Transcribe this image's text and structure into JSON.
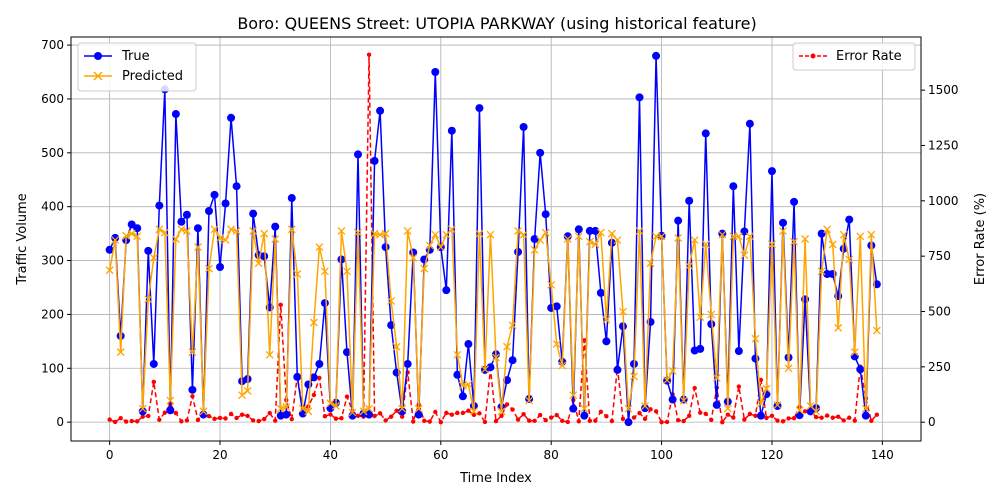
{
  "chart_data": {
    "type": "line",
    "title": "Boro: QUEENS Street: UTOPIA PARKWAY (using historical feature)",
    "xlabel": "Time Index",
    "ylabel": "Traffic Volume",
    "ylabel_right": "Error Rate (%)",
    "xlim": [
      -7,
      147
    ],
    "ylim": [
      -35,
      715
    ],
    "ylim_right": [
      -85,
      1740
    ],
    "xticks": [
      0,
      20,
      40,
      60,
      80,
      100,
      120,
      140
    ],
    "yticks": [
      0,
      100,
      200,
      300,
      400,
      500,
      600,
      700
    ],
    "yticks_right": [
      0,
      250,
      500,
      750,
      1000,
      1250,
      1500
    ],
    "grid": true,
    "legend_left_position": "upper-left",
    "legend_right_position": "upper-right",
    "series": [
      {
        "name": "True",
        "axis": "left",
        "color": "#0000ff",
        "marker": "circle",
        "values": [
          320,
          342,
          160,
          338,
          367,
          360,
          20,
          318,
          108,
          402,
          618,
          22,
          572,
          372,
          385,
          60,
          360,
          14,
          392,
          422,
          288,
          406,
          565,
          438,
          76,
          80,
          387,
          310,
          308,
          213,
          363,
          12,
          14,
          416,
          84,
          16,
          70,
          83,
          108,
          221,
          26,
          36,
          302,
          130,
          12,
          497,
          16,
          14,
          485,
          578,
          325,
          180,
          92,
          20,
          108,
          315,
          14,
          302,
          320,
          650,
          325,
          245,
          541,
          88,
          48,
          145,
          30,
          583,
          97,
          102,
          126,
          28,
          78,
          115,
          316,
          548,
          43,
          340,
          500,
          386,
          212,
          215,
          112,
          345,
          25,
          358,
          12,
          355,
          355,
          240,
          150,
          333,
          97,
          178,
          0,
          108,
          603,
          26,
          186,
          680,
          346,
          77,
          42,
          374,
          42,
          411,
          133,
          136,
          536,
          182,
          32,
          350,
          38,
          438,
          132,
          354,
          554,
          118,
          12,
          52,
          466,
          30,
          370,
          120,
          409,
          13,
          228,
          20,
          26,
          350,
          275,
          275,
          234,
          322,
          376,
          122,
          98,
          12,
          328,
          256
        ]
      },
      {
        "name": "Predicted",
        "axis": "left",
        "color": "#ffa500",
        "marker": "x",
        "values": [
          282,
          338,
          130,
          346,
          350,
          345,
          25,
          228,
          305,
          358,
          352,
          40,
          340,
          358,
          355,
          130,
          325,
          20,
          285,
          358,
          342,
          338,
          358,
          355,
          50,
          58,
          355,
          295,
          350,
          125,
          340,
          25,
          28,
          358,
          275,
          25,
          20,
          185,
          325,
          280,
          35,
          30,
          355,
          280,
          18,
          352,
          20,
          25,
          350,
          348,
          350,
          225,
          140,
          25,
          355,
          305,
          25,
          285,
          328,
          348,
          325,
          348,
          358,
          125,
          68,
          70,
          20,
          350,
          98,
          348,
          120,
          20,
          140,
          180,
          355,
          348,
          40,
          320,
          338,
          352,
          255,
          145,
          105,
          340,
          50,
          345,
          25,
          335,
          330,
          352,
          190,
          350,
          338,
          205,
          25,
          85,
          355,
          30,
          295,
          345,
          345,
          78,
          95,
          342,
          40,
          290,
          338,
          195,
          330,
          200,
          82,
          348,
          25,
          345,
          345,
          310,
          345,
          155,
          35,
          62,
          330,
          32,
          355,
          100,
          335,
          22,
          340,
          30,
          20,
          280,
          358,
          330,
          175,
          348,
          302,
          130,
          345,
          25,
          348,
          170
        ]
      },
      {
        "name": "Error Rate",
        "axis": "right",
        "color": "#ff0000",
        "marker": "dot",
        "linestyle": "dashed",
        "values": [
          12,
          1,
          18,
          3,
          5,
          4,
          25,
          28,
          182,
          11,
          43,
          82,
          41,
          4,
          8,
          117,
          10,
          43,
          27,
          15,
          19,
          17,
          37,
          19,
          34,
          28,
          8,
          5,
          14,
          41,
          7,
          530,
          100,
          14,
          208,
          56,
          71,
          123,
          200,
          27,
          35,
          16,
          18,
          115,
          50,
          29,
          25,
          1660,
          28,
          40,
          8,
          25,
          52,
          25,
          225,
          3,
          79,
          6,
          3,
          46,
          0,
          42,
          34,
          42,
          42,
          52,
          33,
          40,
          1,
          241,
          5,
          29,
          80,
          57,
          12,
          36,
          7,
          6,
          32,
          9,
          21,
          32,
          6,
          1,
          100,
          4,
          370,
          6,
          7,
          47,
          27,
          5,
          248,
          15,
          0,
          21,
          41,
          15,
          58,
          49,
          0,
          1,
          126,
          9,
          5,
          29,
          154,
          43,
          38,
          10,
          156,
          0,
          34,
          21,
          161,
          12,
          37,
          29,
          191,
          19,
          29,
          7,
          4,
          17,
          18,
          69,
          49,
          50,
          23,
          20,
          30,
          20,
          25,
          8,
          20,
          7,
          251,
          108,
          6,
          34
        ]
      }
    ]
  }
}
